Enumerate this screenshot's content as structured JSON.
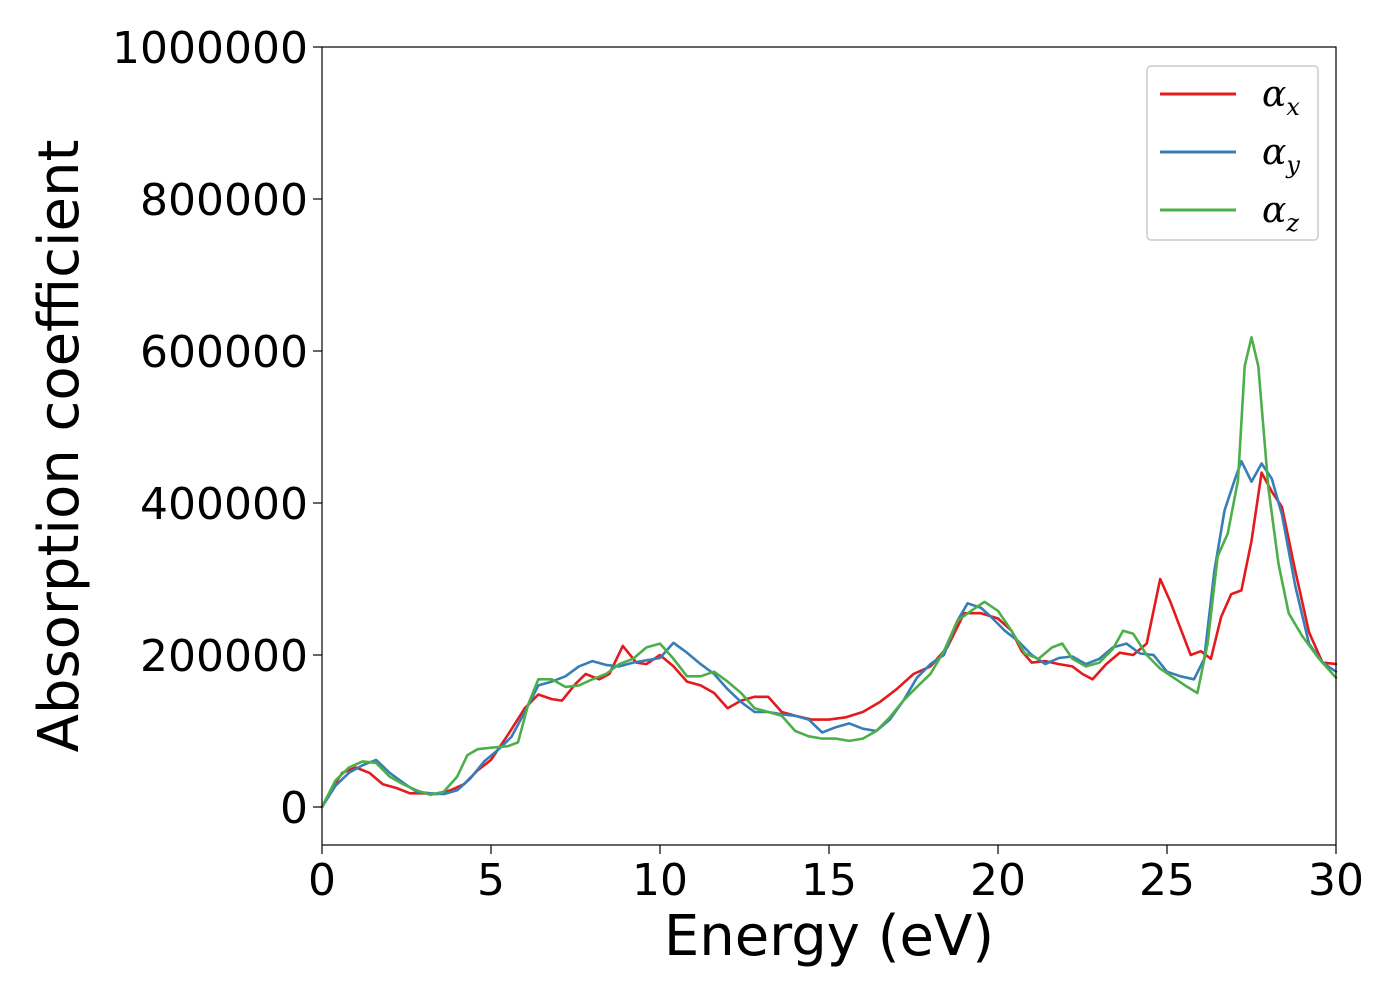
{
  "chart_data": {
    "type": "line",
    "title": "",
    "xlabel": "Energy (eV)",
    "ylabel": "Absorption coefficient",
    "xlim": [
      0,
      30
    ],
    "ylim": [
      -50000,
      1000000
    ],
    "x_ticks": [
      0,
      5,
      10,
      15,
      20,
      25,
      30
    ],
    "y_ticks": [
      0,
      200000,
      400000,
      600000,
      800000,
      1000000
    ],
    "grid": false,
    "legend_position": "top-right",
    "series": [
      {
        "name": "α_x",
        "symbol": "α",
        "subscript": "x",
        "color": "#e41a1c",
        "points": [
          [
            0,
            0
          ],
          [
            0.3,
            25000
          ],
          [
            0.6,
            45000
          ],
          [
            1.0,
            52000
          ],
          [
            1.4,
            45000
          ],
          [
            1.8,
            30000
          ],
          [
            2.2,
            25000
          ],
          [
            2.6,
            18000
          ],
          [
            3.0,
            18000
          ],
          [
            3.4,
            17000
          ],
          [
            3.8,
            22000
          ],
          [
            4.2,
            30000
          ],
          [
            4.6,
            48000
          ],
          [
            5.0,
            62000
          ],
          [
            5.5,
            95000
          ],
          [
            6.0,
            130000
          ],
          [
            6.4,
            148000
          ],
          [
            6.8,
            142000
          ],
          [
            7.1,
            140000
          ],
          [
            7.5,
            162000
          ],
          [
            7.8,
            175000
          ],
          [
            8.2,
            168000
          ],
          [
            8.5,
            175000
          ],
          [
            8.9,
            212000
          ],
          [
            9.3,
            190000
          ],
          [
            9.6,
            188000
          ],
          [
            10.0,
            200000
          ],
          [
            10.4,
            185000
          ],
          [
            10.8,
            165000
          ],
          [
            11.2,
            160000
          ],
          [
            11.6,
            150000
          ],
          [
            12.0,
            130000
          ],
          [
            12.4,
            140000
          ],
          [
            12.8,
            145000
          ],
          [
            13.2,
            145000
          ],
          [
            13.6,
            125000
          ],
          [
            14.0,
            120000
          ],
          [
            14.5,
            115000
          ],
          [
            15.0,
            115000
          ],
          [
            15.5,
            118000
          ],
          [
            16.0,
            125000
          ],
          [
            16.5,
            138000
          ],
          [
            17.0,
            155000
          ],
          [
            17.5,
            175000
          ],
          [
            18.0,
            185000
          ],
          [
            18.5,
            210000
          ],
          [
            19.0,
            255000
          ],
          [
            19.5,
            255000
          ],
          [
            20.0,
            248000
          ],
          [
            20.4,
            232000
          ],
          [
            20.7,
            205000
          ],
          [
            21.0,
            190000
          ],
          [
            21.4,
            192000
          ],
          [
            21.8,
            188000
          ],
          [
            22.2,
            185000
          ],
          [
            22.5,
            175000
          ],
          [
            22.8,
            168000
          ],
          [
            23.2,
            188000
          ],
          [
            23.6,
            203000
          ],
          [
            24.0,
            200000
          ],
          [
            24.4,
            215000
          ],
          [
            24.8,
            300000
          ],
          [
            25.1,
            270000
          ],
          [
            25.4,
            235000
          ],
          [
            25.7,
            200000
          ],
          [
            26.0,
            205000
          ],
          [
            26.3,
            195000
          ],
          [
            26.6,
            250000
          ],
          [
            26.9,
            280000
          ],
          [
            27.2,
            285000
          ],
          [
            27.5,
            350000
          ],
          [
            27.8,
            440000
          ],
          [
            28.1,
            415000
          ],
          [
            28.4,
            395000
          ],
          [
            28.8,
            310000
          ],
          [
            29.2,
            230000
          ],
          [
            29.6,
            190000
          ],
          [
            30.0,
            188000
          ]
        ]
      },
      {
        "name": "α_y",
        "symbol": "α",
        "subscript": "y",
        "color": "#377eb8",
        "points": [
          [
            0,
            0
          ],
          [
            0.4,
            28000
          ],
          [
            0.8,
            45000
          ],
          [
            1.2,
            55000
          ],
          [
            1.6,
            62000
          ],
          [
            2.0,
            45000
          ],
          [
            2.4,
            32000
          ],
          [
            2.8,
            20000
          ],
          [
            3.2,
            18000
          ],
          [
            3.6,
            17000
          ],
          [
            4.0,
            22000
          ],
          [
            4.4,
            38000
          ],
          [
            4.8,
            60000
          ],
          [
            5.2,
            75000
          ],
          [
            5.6,
            92000
          ],
          [
            6.0,
            125000
          ],
          [
            6.4,
            160000
          ],
          [
            6.8,
            165000
          ],
          [
            7.2,
            172000
          ],
          [
            7.6,
            185000
          ],
          [
            8.0,
            192000
          ],
          [
            8.4,
            187000
          ],
          [
            8.8,
            185000
          ],
          [
            9.2,
            190000
          ],
          [
            9.6,
            193000
          ],
          [
            10.0,
            196000
          ],
          [
            10.4,
            216000
          ],
          [
            10.8,
            203000
          ],
          [
            11.2,
            188000
          ],
          [
            11.6,
            175000
          ],
          [
            12.0,
            155000
          ],
          [
            12.4,
            138000
          ],
          [
            12.8,
            125000
          ],
          [
            13.2,
            125000
          ],
          [
            13.6,
            122000
          ],
          [
            14.0,
            120000
          ],
          [
            14.4,
            115000
          ],
          [
            14.8,
            98000
          ],
          [
            15.2,
            105000
          ],
          [
            15.6,
            110000
          ],
          [
            16.0,
            103000
          ],
          [
            16.4,
            100000
          ],
          [
            16.8,
            115000
          ],
          [
            17.2,
            140000
          ],
          [
            17.6,
            170000
          ],
          [
            18.0,
            188000
          ],
          [
            18.4,
            200000
          ],
          [
            18.8,
            245000
          ],
          [
            19.1,
            268000
          ],
          [
            19.5,
            262000
          ],
          [
            19.8,
            250000
          ],
          [
            20.2,
            232000
          ],
          [
            20.6,
            218000
          ],
          [
            21.0,
            200000
          ],
          [
            21.4,
            188000
          ],
          [
            21.8,
            196000
          ],
          [
            22.2,
            198000
          ],
          [
            22.6,
            188000
          ],
          [
            23.0,
            195000
          ],
          [
            23.4,
            210000
          ],
          [
            23.8,
            215000
          ],
          [
            24.2,
            202000
          ],
          [
            24.6,
            200000
          ],
          [
            25.0,
            178000
          ],
          [
            25.4,
            172000
          ],
          [
            25.8,
            168000
          ],
          [
            26.1,
            195000
          ],
          [
            26.4,
            310000
          ],
          [
            26.7,
            390000
          ],
          [
            27.0,
            430000
          ],
          [
            27.2,
            455000
          ],
          [
            27.5,
            428000
          ],
          [
            27.8,
            452000
          ],
          [
            28.1,
            432000
          ],
          [
            28.4,
            385000
          ],
          [
            28.8,
            290000
          ],
          [
            29.2,
            215000
          ],
          [
            29.6,
            190000
          ],
          [
            30.0,
            178000
          ]
        ]
      },
      {
        "name": "α_z",
        "symbol": "α",
        "subscript": "z",
        "color": "#4daf4a",
        "points": [
          [
            0,
            0
          ],
          [
            0.4,
            35000
          ],
          [
            0.8,
            52000
          ],
          [
            1.2,
            60000
          ],
          [
            1.6,
            58000
          ],
          [
            2.0,
            40000
          ],
          [
            2.4,
            30000
          ],
          [
            2.8,
            22000
          ],
          [
            3.2,
            16000
          ],
          [
            3.6,
            20000
          ],
          [
            4.0,
            40000
          ],
          [
            4.3,
            68000
          ],
          [
            4.6,
            76000
          ],
          [
            5.0,
            78000
          ],
          [
            5.5,
            80000
          ],
          [
            5.8,
            85000
          ],
          [
            6.1,
            135000
          ],
          [
            6.4,
            168000
          ],
          [
            6.8,
            168000
          ],
          [
            7.2,
            158000
          ],
          [
            7.6,
            160000
          ],
          [
            8.0,
            168000
          ],
          [
            8.4,
            175000
          ],
          [
            8.8,
            188000
          ],
          [
            9.2,
            195000
          ],
          [
            9.6,
            210000
          ],
          [
            10.0,
            215000
          ],
          [
            10.4,
            195000
          ],
          [
            10.8,
            172000
          ],
          [
            11.2,
            172000
          ],
          [
            11.6,
            178000
          ],
          [
            12.0,
            165000
          ],
          [
            12.4,
            150000
          ],
          [
            12.8,
            130000
          ],
          [
            13.2,
            125000
          ],
          [
            13.6,
            120000
          ],
          [
            14.0,
            100000
          ],
          [
            14.4,
            93000
          ],
          [
            14.8,
            90000
          ],
          [
            15.2,
            90000
          ],
          [
            15.6,
            87000
          ],
          [
            16.0,
            90000
          ],
          [
            16.4,
            100000
          ],
          [
            16.8,
            118000
          ],
          [
            17.2,
            140000
          ],
          [
            17.6,
            158000
          ],
          [
            18.0,
            175000
          ],
          [
            18.4,
            205000
          ],
          [
            18.8,
            245000
          ],
          [
            19.2,
            258000
          ],
          [
            19.6,
            270000
          ],
          [
            20.0,
            258000
          ],
          [
            20.4,
            232000
          ],
          [
            20.8,
            202000
          ],
          [
            21.2,
            195000
          ],
          [
            21.6,
            210000
          ],
          [
            21.9,
            215000
          ],
          [
            22.2,
            195000
          ],
          [
            22.6,
            185000
          ],
          [
            23.0,
            190000
          ],
          [
            23.4,
            208000
          ],
          [
            23.7,
            232000
          ],
          [
            24.0,
            228000
          ],
          [
            24.4,
            200000
          ],
          [
            24.8,
            182000
          ],
          [
            25.2,
            170000
          ],
          [
            25.6,
            158000
          ],
          [
            25.9,
            150000
          ],
          [
            26.2,
            215000
          ],
          [
            26.5,
            330000
          ],
          [
            26.8,
            360000
          ],
          [
            27.1,
            430000
          ],
          [
            27.3,
            580000
          ],
          [
            27.5,
            618000
          ],
          [
            27.7,
            580000
          ],
          [
            28.0,
            420000
          ],
          [
            28.3,
            320000
          ],
          [
            28.6,
            255000
          ],
          [
            29.0,
            225000
          ],
          [
            29.5,
            195000
          ],
          [
            30.0,
            170000
          ]
        ]
      }
    ]
  }
}
